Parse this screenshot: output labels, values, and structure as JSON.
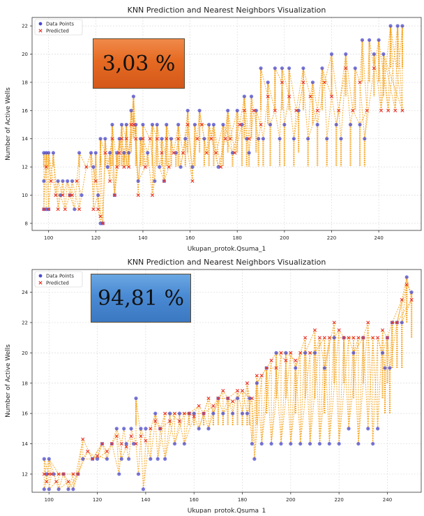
{
  "chart_data": [
    {
      "type": "scatter",
      "title": "KNN Prediction and Nearest Neighbors Visualization",
      "xlabel": "Ukupan_protok.Qsuma_1",
      "ylabel": "Number of Active Wells",
      "xlim": [
        93,
        258
      ],
      "ylim": [
        7.5,
        22.6
      ],
      "xticks": [
        100,
        120,
        140,
        160,
        180,
        200,
        220,
        240
      ],
      "yticks": [
        8,
        10,
        12,
        14,
        16,
        18,
        20,
        22
      ],
      "grid": true,
      "legend_position": "top-left",
      "badge": "3,03 %",
      "series": [
        {
          "name": "Data Points",
          "color": "#4a4ad0",
          "marker": "circle"
        },
        {
          "name": "Predicted",
          "color": "#e8342a",
          "marker": "x"
        }
      ],
      "data_points": [
        [
          98,
          13
        ],
        [
          98,
          11
        ],
        [
          98,
          9
        ],
        [
          99,
          13
        ],
        [
          99,
          9
        ],
        [
          100,
          13
        ],
        [
          100,
          9
        ],
        [
          102,
          13
        ],
        [
          104,
          11
        ],
        [
          105,
          10
        ],
        [
          106,
          11
        ],
        [
          108,
          11
        ],
        [
          109,
          10
        ],
        [
          110,
          11
        ],
        [
          111,
          9
        ],
        [
          113,
          13
        ],
        [
          114,
          10
        ],
        [
          118,
          13
        ],
        [
          119,
          12
        ],
        [
          120,
          13
        ],
        [
          121,
          10
        ],
        [
          122,
          14
        ],
        [
          122,
          8
        ],
        [
          123,
          8
        ],
        [
          124,
          14
        ],
        [
          125,
          12
        ],
        [
          126,
          13
        ],
        [
          127,
          15
        ],
        [
          128,
          10
        ],
        [
          129,
          13
        ],
        [
          130,
          14
        ],
        [
          131,
          15
        ],
        [
          132,
          13
        ],
        [
          133,
          15
        ],
        [
          134,
          13
        ],
        [
          135,
          16
        ],
        [
          136,
          17
        ],
        [
          137,
          15
        ],
        [
          138,
          11
        ],
        [
          139,
          14
        ],
        [
          140,
          15
        ],
        [
          142,
          13
        ],
        [
          144,
          15
        ],
        [
          145,
          11
        ],
        [
          146,
          15
        ],
        [
          147,
          12
        ],
        [
          148,
          14
        ],
        [
          149,
          11
        ],
        [
          150,
          15
        ],
        [
          152,
          14
        ],
        [
          154,
          13
        ],
        [
          155,
          15
        ],
        [
          156,
          12
        ],
        [
          158,
          14
        ],
        [
          159,
          16
        ],
        [
          161,
          12
        ],
        [
          162,
          15
        ],
        [
          164,
          16
        ],
        [
          166,
          14
        ],
        [
          168,
          15
        ],
        [
          170,
          15
        ],
        [
          172,
          12
        ],
        [
          174,
          15
        ],
        [
          176,
          16
        ],
        [
          178,
          13
        ],
        [
          180,
          16
        ],
        [
          182,
          15
        ],
        [
          183,
          17
        ],
        [
          184,
          14
        ],
        [
          185,
          13
        ],
        [
          186,
          17
        ],
        [
          188,
          16
        ],
        [
          189,
          14
        ],
        [
          190,
          19
        ],
        [
          191,
          14
        ],
        [
          193,
          18
        ],
        [
          194,
          15
        ],
        [
          196,
          19
        ],
        [
          198,
          14
        ],
        [
          199,
          19
        ],
        [
          200,
          15
        ],
        [
          202,
          19
        ],
        [
          204,
          14
        ],
        [
          206,
          16
        ],
        [
          208,
          19
        ],
        [
          210,
          14
        ],
        [
          212,
          18
        ],
        [
          214,
          15
        ],
        [
          216,
          19
        ],
        [
          218,
          14
        ],
        [
          220,
          20
        ],
        [
          222,
          15
        ],
        [
          224,
          14
        ],
        [
          226,
          20
        ],
        [
          228,
          15
        ],
        [
          230,
          19
        ],
        [
          232,
          15
        ],
        [
          233,
          21
        ],
        [
          234,
          14
        ],
        [
          236,
          21
        ],
        [
          238,
          20
        ],
        [
          240,
          21
        ],
        [
          242,
          20
        ],
        [
          245,
          22
        ],
        [
          248,
          22
        ],
        [
          250,
          22
        ]
      ],
      "predicted": [
        [
          98,
          9
        ],
        [
          99,
          12
        ],
        [
          100,
          9
        ],
        [
          101,
          11
        ],
        [
          103,
          10
        ],
        [
          104,
          9
        ],
        [
          106,
          10
        ],
        [
          107,
          9
        ],
        [
          109,
          10
        ],
        [
          110,
          10
        ],
        [
          112,
          11
        ],
        [
          113,
          9
        ],
        [
          116,
          12
        ],
        [
          119,
          9
        ],
        [
          120,
          11
        ],
        [
          121,
          9
        ],
        [
          122,
          8.5
        ],
        [
          123,
          8
        ],
        [
          124,
          13
        ],
        [
          126,
          11
        ],
        [
          127,
          14
        ],
        [
          128,
          10
        ],
        [
          129,
          12
        ],
        [
          130,
          13
        ],
        [
          131,
          14
        ],
        [
          132,
          12
        ],
        [
          133,
          14
        ],
        [
          134,
          12
        ],
        [
          135,
          15
        ],
        [
          136,
          15
        ],
        [
          137,
          14
        ],
        [
          138,
          10
        ],
        [
          140,
          14
        ],
        [
          141,
          12
        ],
        [
          143,
          14
        ],
        [
          144,
          10
        ],
        [
          146,
          14
        ],
        [
          148,
          13
        ],
        [
          149,
          11
        ],
        [
          150,
          14
        ],
        [
          151,
          12
        ],
        [
          153,
          13
        ],
        [
          155,
          14
        ],
        [
          157,
          13
        ],
        [
          159,
          15
        ],
        [
          161,
          11
        ],
        [
          163,
          14
        ],
        [
          165,
          15
        ],
        [
          167,
          13
        ],
        [
          169,
          14
        ],
        [
          171,
          13
        ],
        [
          173,
          12
        ],
        [
          175,
          14
        ],
        [
          177,
          14
        ],
        [
          179,
          13
        ],
        [
          181,
          15
        ],
        [
          183,
          16
        ],
        [
          185,
          14
        ],
        [
          187,
          16
        ],
        [
          190,
          15
        ],
        [
          193,
          17
        ],
        [
          196,
          16
        ],
        [
          199,
          18
        ],
        [
          202,
          17
        ],
        [
          205,
          16
        ],
        [
          208,
          18
        ],
        [
          211,
          17
        ],
        [
          214,
          16
        ],
        [
          217,
          18
        ],
        [
          220,
          17
        ],
        [
          223,
          16
        ],
        [
          226,
          19
        ],
        [
          229,
          16
        ],
        [
          232,
          18
        ],
        [
          235,
          16
        ],
        [
          238,
          19
        ],
        [
          241,
          16
        ],
        [
          244,
          16
        ],
        [
          247,
          16
        ],
        [
          250,
          16
        ]
      ]
    },
    {
      "type": "scatter",
      "title": "KNN Prediction and Nearest Neighbors Visualization",
      "xlabel": "Ukupan_protok.Qsuma_1",
      "ylabel": "Number of Active Wells",
      "xlim": [
        93,
        254
      ],
      "ylim": [
        10.8,
        25.5
      ],
      "xticks": [
        100,
        120,
        140,
        160,
        180,
        200,
        220,
        240
      ],
      "yticks": [
        12,
        14,
        16,
        18,
        20,
        22,
        24
      ],
      "grid": true,
      "legend_position": "top-left",
      "badge": "94,81 %",
      "series": [
        {
          "name": "Data Points",
          "color": "#4a4ad0",
          "marker": "circle"
        },
        {
          "name": "Predicted",
          "color": "#e8342a",
          "marker": "x"
        }
      ],
      "data_points": [
        [
          98,
          13
        ],
        [
          98,
          11
        ],
        [
          99,
          12
        ],
        [
          100,
          13
        ],
        [
          100,
          11
        ],
        [
          102,
          12
        ],
        [
          104,
          11
        ],
        [
          106,
          12
        ],
        [
          108,
          11
        ],
        [
          110,
          11
        ],
        [
          112,
          12
        ],
        [
          114,
          13
        ],
        [
          118,
          13
        ],
        [
          120,
          13
        ],
        [
          122,
          14
        ],
        [
          124,
          13
        ],
        [
          126,
          14
        ],
        [
          128,
          15
        ],
        [
          129,
          12
        ],
        [
          130,
          13
        ],
        [
          131,
          15
        ],
        [
          132,
          14
        ],
        [
          133,
          13
        ],
        [
          134,
          15
        ],
        [
          135,
          14
        ],
        [
          136,
          17
        ],
        [
          137,
          12
        ],
        [
          138,
          15
        ],
        [
          139,
          11
        ],
        [
          140,
          15
        ],
        [
          142,
          13
        ],
        [
          144,
          16
        ],
        [
          145,
          13
        ],
        [
          146,
          15
        ],
        [
          148,
          13
        ],
        [
          150,
          16
        ],
        [
          152,
          14
        ],
        [
          154,
          16
        ],
        [
          156,
          14
        ],
        [
          158,
          16
        ],
        [
          160,
          16
        ],
        [
          162,
          15
        ],
        [
          164,
          16
        ],
        [
          166,
          15
        ],
        [
          168,
          16
        ],
        [
          170,
          17
        ],
        [
          172,
          16
        ],
        [
          174,
          17
        ],
        [
          176,
          16
        ],
        [
          178,
          17
        ],
        [
          180,
          16
        ],
        [
          182,
          16
        ],
        [
          183,
          17
        ],
        [
          184,
          14
        ],
        [
          185,
          13
        ],
        [
          186,
          18
        ],
        [
          188,
          14
        ],
        [
          190,
          19
        ],
        [
          192,
          14
        ],
        [
          194,
          20
        ],
        [
          196,
          14
        ],
        [
          198,
          20
        ],
        [
          200,
          14
        ],
        [
          202,
          19
        ],
        [
          204,
          14
        ],
        [
          206,
          20
        ],
        [
          208,
          14
        ],
        [
          210,
          20
        ],
        [
          212,
          14
        ],
        [
          214,
          19
        ],
        [
          216,
          14
        ],
        [
          218,
          21
        ],
        [
          220,
          14
        ],
        [
          222,
          21
        ],
        [
          224,
          15
        ],
        [
          226,
          20
        ],
        [
          228,
          14
        ],
        [
          230,
          21
        ],
        [
          232,
          15
        ],
        [
          234,
          14
        ],
        [
          236,
          15
        ],
        [
          238,
          20
        ],
        [
          239,
          19
        ],
        [
          240,
          21
        ],
        [
          241,
          19
        ],
        [
          242,
          22
        ],
        [
          244,
          22
        ],
        [
          246,
          22
        ],
        [
          248,
          25
        ],
        [
          250,
          24
        ]
      ],
      "predicted": [
        [
          98,
          12
        ],
        [
          99,
          11.5
        ],
        [
          100,
          12
        ],
        [
          101,
          12
        ],
        [
          103,
          11.5
        ],
        [
          104,
          12
        ],
        [
          106,
          12
        ],
        [
          108,
          11.5
        ],
        [
          110,
          12
        ],
        [
          112,
          12
        ],
        [
          114,
          14.3
        ],
        [
          116,
          13.5
        ],
        [
          118,
          13
        ],
        [
          120,
          13.2
        ],
        [
          122,
          14
        ],
        [
          124,
          13.5
        ],
        [
          126,
          14
        ],
        [
          128,
          14.5
        ],
        [
          130,
          14
        ],
        [
          132,
          13.8
        ],
        [
          134,
          14.5
        ],
        [
          136,
          14
        ],
        [
          138,
          14.5
        ],
        [
          140,
          14.2
        ],
        [
          142,
          15
        ],
        [
          144,
          15.5
        ],
        [
          146,
          15
        ],
        [
          148,
          16
        ],
        [
          150,
          15.5
        ],
        [
          152,
          16
        ],
        [
          154,
          15.5
        ],
        [
          156,
          16
        ],
        [
          158,
          16
        ],
        [
          160,
          15.8
        ],
        [
          162,
          16.5
        ],
        [
          164,
          16
        ],
        [
          166,
          17
        ],
        [
          168,
          16.5
        ],
        [
          170,
          17
        ],
        [
          172,
          17.5
        ],
        [
          174,
          17
        ],
        [
          176,
          16.8
        ],
        [
          178,
          17.5
        ],
        [
          180,
          17.5
        ],
        [
          182,
          18
        ],
        [
          184,
          17
        ],
        [
          186,
          18.5
        ],
        [
          188,
          18.5
        ],
        [
          190,
          19
        ],
        [
          192,
          19.5
        ],
        [
          194,
          19
        ],
        [
          196,
          20
        ],
        [
          198,
          19.5
        ],
        [
          200,
          20
        ],
        [
          202,
          19.5
        ],
        [
          204,
          20
        ],
        [
          206,
          21
        ],
        [
          208,
          20
        ],
        [
          210,
          21.5
        ],
        [
          212,
          21
        ],
        [
          214,
          21
        ],
        [
          216,
          21
        ],
        [
          218,
          22
        ],
        [
          220,
          21.5
        ],
        [
          222,
          21
        ],
        [
          224,
          21
        ],
        [
          226,
          21
        ],
        [
          228,
          21
        ],
        [
          230,
          21
        ],
        [
          232,
          22
        ],
        [
          234,
          21
        ],
        [
          236,
          21
        ],
        [
          238,
          21.5
        ],
        [
          240,
          21
        ],
        [
          242,
          22
        ],
        [
          244,
          22
        ],
        [
          246,
          23.5
        ],
        [
          248,
          24.5
        ],
        [
          250,
          23.5
        ]
      ]
    }
  ]
}
